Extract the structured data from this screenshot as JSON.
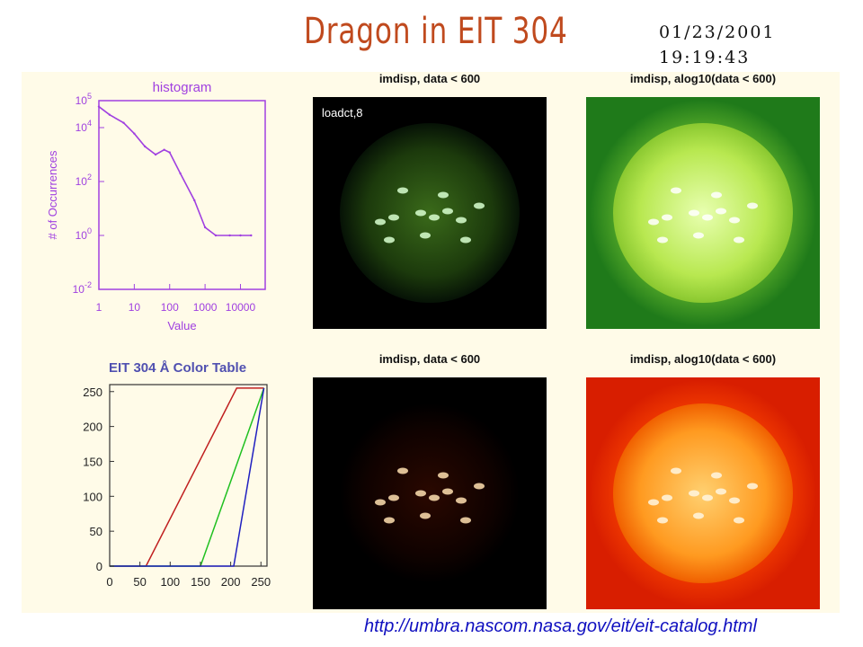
{
  "slide": {
    "title": "Dragon in EIT 304",
    "date": "01/23/2001",
    "time": "19:19:43",
    "url": "http://umbra.nascom.nasa.gov/eit/eit-catalog.html"
  },
  "images": [
    {
      "caption": "imdisp, data < 600",
      "label": "loadct,8",
      "style": "green-dark"
    },
    {
      "caption": "imdisp, alog10(data < 600)",
      "label": "",
      "style": "green-bright"
    },
    {
      "caption": "imdisp, data < 600",
      "label": "",
      "style": "red-dark"
    },
    {
      "caption": "imdisp, alog10(data < 600)",
      "label": "",
      "style": "orange-bright"
    }
  ],
  "chart_data": [
    {
      "type": "line",
      "title": "histogram",
      "xlabel": "Value",
      "ylabel": "# of Occurrences",
      "xscale": "log",
      "yscale": "log",
      "xlim": [
        1,
        50000
      ],
      "ylim": [
        0.01,
        100000
      ],
      "xticks": [
        "1",
        "10",
        "100",
        "1000",
        "10000"
      ],
      "yticks": [
        "10^-2",
        "10^0",
        "10^2",
        "10^4",
        "10^5"
      ],
      "color": "#a040e0",
      "series": [
        {
          "name": "",
          "x": [
            1,
            2,
            5,
            10,
            20,
            40,
            70,
            100,
            200,
            500,
            1000,
            2000,
            5000,
            10000,
            20000
          ],
          "values": [
            60000,
            30000,
            15000,
            6000,
            2000,
            1000,
            1500,
            1200,
            200,
            20,
            2,
            1,
            1,
            1,
            1
          ]
        }
      ]
    },
    {
      "type": "line",
      "title": "EIT 304 Å Color Table",
      "xlabel": "",
      "ylabel": "",
      "xlim": [
        0,
        260
      ],
      "ylim": [
        0,
        260
      ],
      "xticks": [
        "0",
        "50",
        "100",
        "150",
        "200",
        "250"
      ],
      "yticks": [
        "0",
        "50",
        "100",
        "150",
        "200",
        "250"
      ],
      "series": [
        {
          "name": "",
          "color": "#c02020",
          "x": [
            0,
            60,
            210,
            255
          ],
          "values": [
            0,
            0,
            255,
            255
          ]
        },
        {
          "name": "",
          "color": "#20c020",
          "x": [
            0,
            150,
            255
          ],
          "values": [
            0,
            0,
            255
          ]
        },
        {
          "name": "",
          "color": "#2020c0",
          "x": [
            0,
            205,
            255
          ],
          "values": [
            0,
            0,
            255
          ]
        }
      ]
    }
  ]
}
